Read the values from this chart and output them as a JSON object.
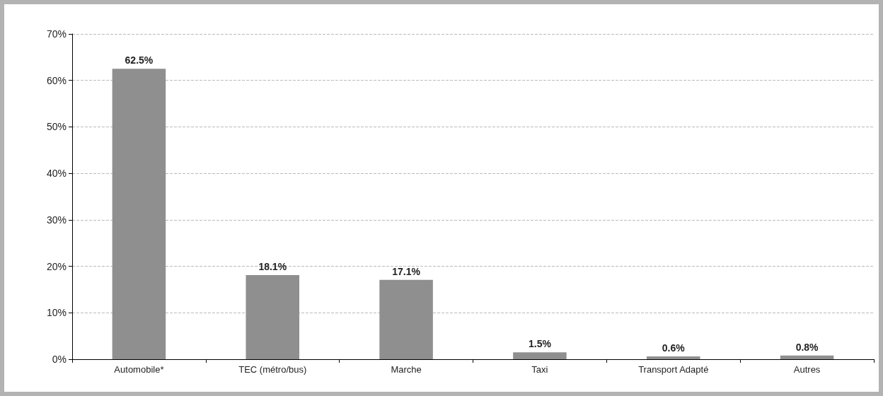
{
  "chart_data": {
    "type": "bar",
    "categories": [
      "Automobile*",
      "TEC (métro/bus)",
      "Marche",
      "Taxi",
      "Transport Adapté",
      "Autres"
    ],
    "values": [
      62.5,
      18.1,
      17.1,
      1.5,
      0.6,
      0.8
    ],
    "value_labels": [
      "62.5%",
      "18.1%",
      "17.1%",
      "1.5%",
      "0.6%",
      "0.8%"
    ],
    "color": "#8f8f8f",
    "ylim": [
      0,
      70
    ],
    "yticks": [
      {
        "value": 0,
        "label": "0%"
      },
      {
        "value": 10,
        "label": "10%"
      },
      {
        "value": 20,
        "label": "20%"
      },
      {
        "value": 30,
        "label": "30%"
      },
      {
        "value": 40,
        "label": "40%"
      },
      {
        "value": 50,
        "label": "50%"
      },
      {
        "value": 60,
        "label": "60%"
      },
      {
        "value": 70,
        "label": "70%"
      }
    ],
    "grid": "y"
  }
}
